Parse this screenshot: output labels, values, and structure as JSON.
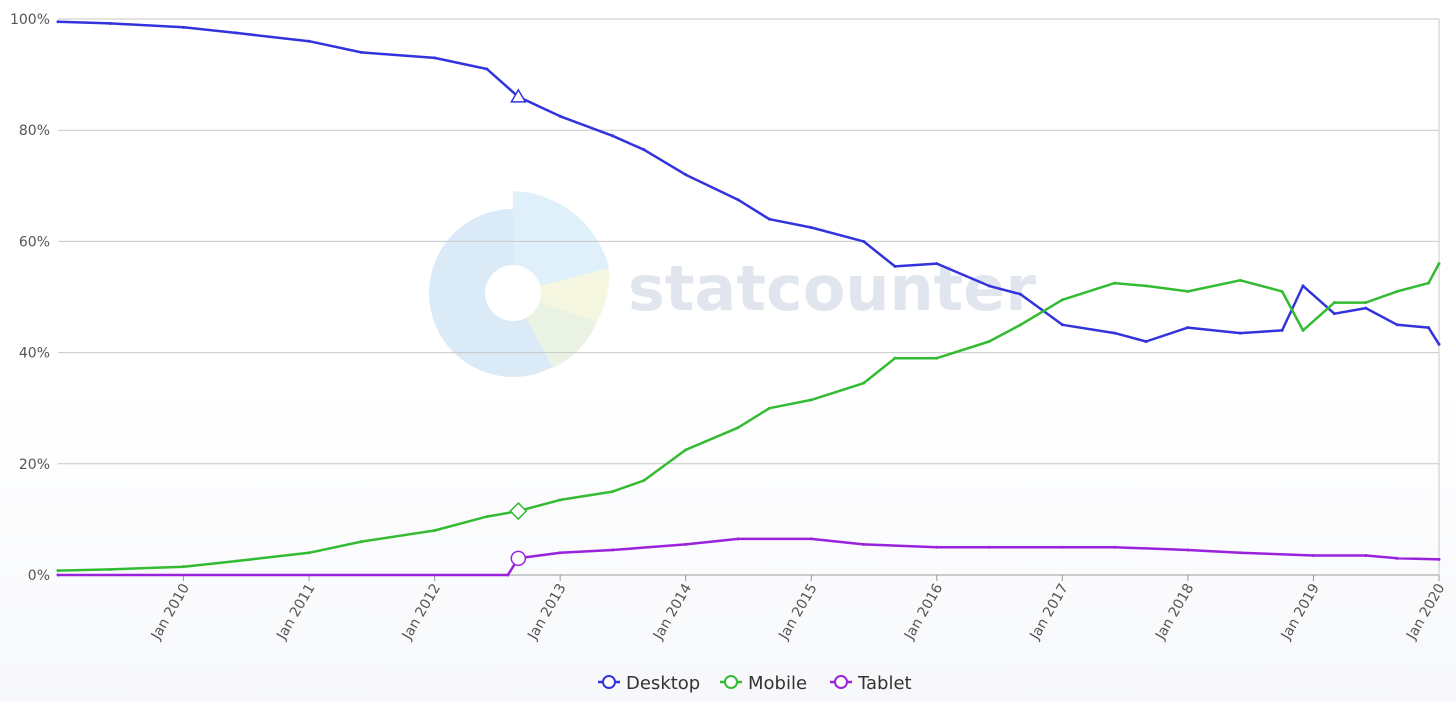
{
  "chart_data": {
    "type": "line",
    "title": "",
    "xlabel": "",
    "ylabel": "",
    "ylim": [
      0,
      100
    ],
    "y_ticks": [
      "0%",
      "20%",
      "40%",
      "60%",
      "80%",
      "100%"
    ],
    "x_ticks": [
      "Jan 2010",
      "Jan 2011",
      "Jan 2012",
      "Jan 2013",
      "Jan 2014",
      "Jan 2015",
      "Jan 2016",
      "Jan 2017",
      "Jan 2018",
      "Jan 2019",
      "Jan 2020"
    ],
    "x_start": "2009-01",
    "x_end": "2020-01",
    "grid": true,
    "legend_position": "bottom-center",
    "watermark": "statcounter",
    "series": [
      {
        "name": "Desktop",
        "color": "#3333dd",
        "marker": "triangle",
        "x": [
          "2009-01",
          "2009-06",
          "2010-01",
          "2010-06",
          "2011-01",
          "2011-06",
          "2012-01",
          "2012-06",
          "2012-09",
          "2013-01",
          "2013-06",
          "2013-09",
          "2014-01",
          "2014-06",
          "2014-09",
          "2015-01",
          "2015-06",
          "2015-09",
          "2016-01",
          "2016-06",
          "2016-09",
          "2017-01",
          "2017-06",
          "2017-09",
          "2018-01",
          "2018-06",
          "2018-10",
          "2018-12",
          "2019-03",
          "2019-06",
          "2019-09",
          "2019-12",
          "2020-01"
        ],
        "y": [
          99.5,
          99.2,
          98.5,
          97.5,
          96,
          94,
          93,
          91,
          86,
          82.5,
          79,
          76.5,
          72,
          67.5,
          64,
          62.5,
          60,
          55.5,
          56,
          52,
          50.5,
          45,
          43.5,
          42,
          44.5,
          43.5,
          44,
          52,
          47,
          48,
          45,
          44.5,
          41.5
        ]
      },
      {
        "name": "Mobile",
        "color": "#33bb33",
        "marker": "diamond",
        "x": [
          "2009-01",
          "2009-06",
          "2010-01",
          "2010-06",
          "2011-01",
          "2011-06",
          "2012-01",
          "2012-06",
          "2012-09",
          "2013-01",
          "2013-06",
          "2013-09",
          "2014-01",
          "2014-06",
          "2014-09",
          "2015-01",
          "2015-06",
          "2015-09",
          "2016-01",
          "2016-06",
          "2016-09",
          "2017-01",
          "2017-06",
          "2017-09",
          "2018-01",
          "2018-06",
          "2018-10",
          "2018-12",
          "2019-03",
          "2019-06",
          "2019-09",
          "2019-12",
          "2020-01"
        ],
        "y": [
          0.8,
          1,
          1.5,
          2.5,
          4,
          6,
          8,
          10.5,
          11.5,
          13.5,
          15,
          17,
          22.5,
          26.5,
          30,
          31.5,
          34.5,
          39,
          39,
          42,
          45,
          49.5,
          52.5,
          52,
          51,
          53,
          51,
          44,
          49,
          49,
          51,
          52.5,
          56
        ]
      },
      {
        "name": "Tablet",
        "color": "#9922dd",
        "marker": "circle",
        "x": [
          "2009-01",
          "2012-08",
          "2012-09",
          "2013-01",
          "2013-06",
          "2014-01",
          "2014-06",
          "2015-01",
          "2015-06",
          "2016-01",
          "2016-06",
          "2017-01",
          "2017-06",
          "2018-01",
          "2018-06",
          "2019-01",
          "2019-06",
          "2019-09",
          "2020-01"
        ],
        "y": [
          0,
          0,
          3,
          4,
          4.5,
          5.5,
          6.5,
          6.5,
          5.5,
          5,
          5,
          5,
          5,
          4.5,
          4,
          3.5,
          3.5,
          3,
          2.8
        ]
      }
    ]
  }
}
